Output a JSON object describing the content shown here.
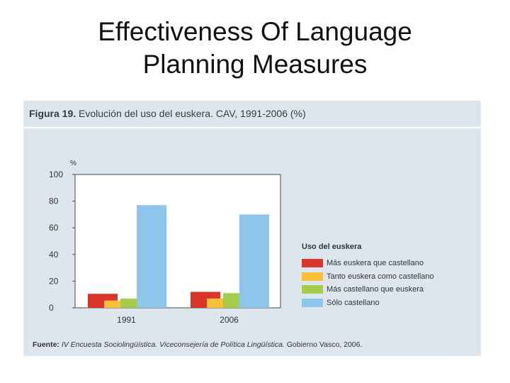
{
  "slide": {
    "title_line1": "Effectiveness Of Language",
    "title_line2": "Planning Measures"
  },
  "figure": {
    "caption_prefix": "Figura 19.",
    "caption_text": "Evolución del uso del euskera. CAV, 1991-2006 (%)",
    "source_label": "Fuente:",
    "source_italic": "IV Encuesta Sociolingüística. Viceconsejería de Política Lingüística.",
    "source_rest": "Gobierno Vasco, 2006."
  },
  "chart_data": {
    "type": "bar",
    "categories": [
      "1991",
      "2006"
    ],
    "ylabel": "%",
    "ylim": [
      0,
      100
    ],
    "yticks": [
      0,
      20,
      40,
      60,
      80,
      100
    ],
    "legend_title": "Uso del euskera",
    "legend_position": "right",
    "grid": false,
    "series": [
      {
        "name": "Más euskera que castellano",
        "color": "#d9352a",
        "values": [
          10.5,
          12
        ]
      },
      {
        "name": "Tanto euskera como castellano",
        "color": "#f9c13a",
        "values": [
          5.5,
          7
        ]
      },
      {
        "name": "Más castellano que euskera",
        "color": "#a5cc4a",
        "values": [
          7,
          11
        ]
      },
      {
        "name": "Sólo castellano",
        "color": "#8ec5ea",
        "values": [
          77,
          70
        ]
      }
    ]
  }
}
